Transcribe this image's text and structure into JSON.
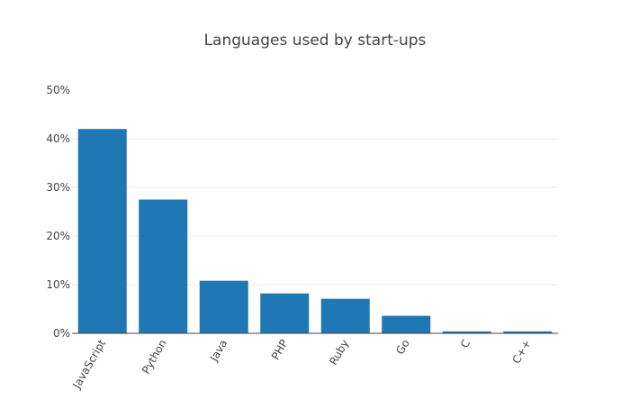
{
  "chart_data": {
    "type": "bar",
    "title": "Languages used by start-ups",
    "xlabel": "",
    "ylabel": "",
    "categories": [
      "JavaScript",
      "Python",
      "Java",
      "PHP",
      "Ruby",
      "Go",
      "C",
      "C++"
    ],
    "values": [
      0.42,
      0.275,
      0.108,
      0.082,
      0.071,
      0.036,
      0.004,
      0.004
    ],
    "ylim": [
      0,
      0.5
    ],
    "yticks": [
      0,
      0.1,
      0.2,
      0.3,
      0.4,
      0.5
    ],
    "ytick_labels": [
      "0%",
      "10%",
      "20%",
      "30%",
      "40%",
      "50%"
    ],
    "bar_color": "#1f77b4",
    "grid": true,
    "legend": "none"
  }
}
